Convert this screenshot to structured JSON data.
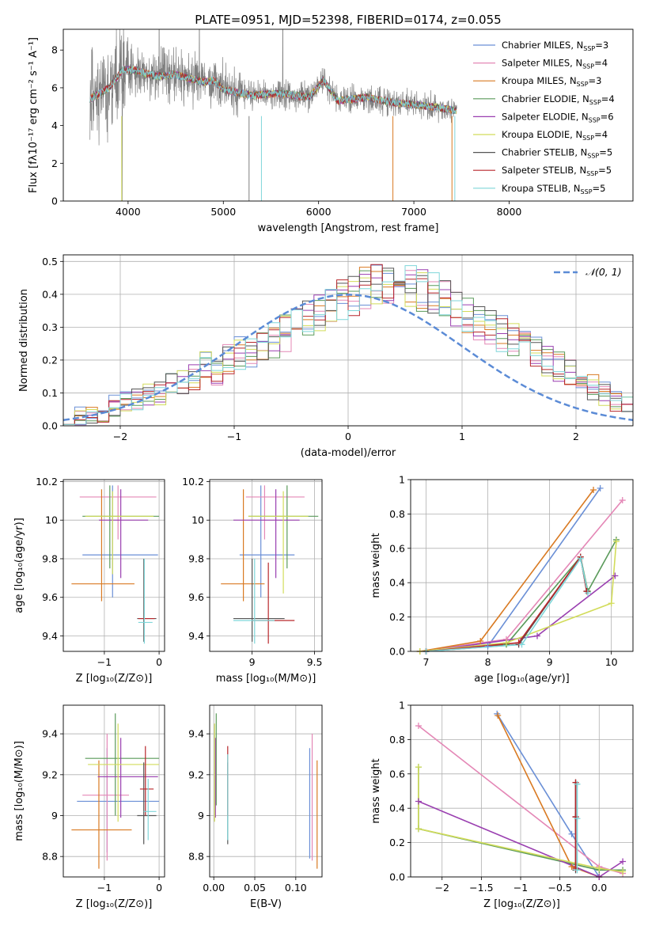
{
  "title": "PLATE=0951, MJD=52398, FIBERID=0174, z=0.055",
  "models": [
    {
      "name": "Chabrier MILES",
      "n": "3",
      "color": "#6a8fd6"
    },
    {
      "name": "Salpeter MILES",
      "n": "4",
      "color": "#e487b6"
    },
    {
      "name": "Kroupa MILES",
      "n": "3",
      "color": "#d97a22"
    },
    {
      "name": "Chabrier ELODIE",
      "n": "4",
      "color": "#5a9a5a"
    },
    {
      "name": "Salpeter ELODIE",
      "n": "6",
      "color": "#9a3fb0"
    },
    {
      "name": "Kroupa ELODIE",
      "n": "4",
      "color": "#d2dc5a"
    },
    {
      "name": "Chabrier STELIB",
      "n": "5",
      "color": "#555555"
    },
    {
      "name": "Salpeter STELIB",
      "n": "5",
      "color": "#b8272b"
    },
    {
      "name": "Kroupa STELIB",
      "n": "5",
      "color": "#7fd6d9"
    }
  ],
  "chart_data": [
    {
      "type": "line",
      "id": "spectrum",
      "xlabel": "wavelength [Angstrom, rest frame]",
      "ylabel": "Flux [fλ10⁻¹⁷ erg cm⁻² s⁻¹ A⁻¹]",
      "xlim": [
        3320,
        9300
      ],
      "ylim": [
        0,
        9.1
      ],
      "xticks": [
        4000,
        5000,
        6000,
        7000,
        8000
      ],
      "yticks": [
        0,
        2,
        4,
        6,
        8
      ],
      "data_range": [
        3600,
        7450
      ],
      "continuum": {
        "x": [
          3600,
          3700,
          3800,
          3950,
          4100,
          4300,
          4500,
          4800,
          4900,
          5000,
          5300,
          5600,
          5900,
          6050,
          6200,
          6500,
          6800,
          7000,
          7200,
          7440
        ],
        "y": [
          5.4,
          5.7,
          6.0,
          7.0,
          6.9,
          6.6,
          6.7,
          6.3,
          6.4,
          5.9,
          5.6,
          5.7,
          5.5,
          6.4,
          5.3,
          5.5,
          5.2,
          5.1,
          5.0,
          4.8
        ]
      },
      "legend": "upper right"
    },
    {
      "type": "line",
      "id": "residual_hist",
      "xlabel": "(data-model)/error",
      "ylabel": "Normed distribution",
      "xlim": [
        -2.5,
        2.5
      ],
      "ylim": [
        0,
        0.52
      ],
      "xticks": [
        -2,
        -1,
        0,
        1,
        2
      ],
      "yticks": [
        0.0,
        0.1,
        0.2,
        0.3,
        0.4,
        0.5
      ],
      "reference": {
        "name": "𝒩(0, 1)",
        "mean": 0,
        "sigma": 1
      },
      "bin_width": 0.1,
      "bin_start": -2.5,
      "hist": [
        0.03,
        0.03,
        0.035,
        0.04,
        0.06,
        0.08,
        0.08,
        0.09,
        0.1,
        0.12,
        0.14,
        0.15,
        0.18,
        0.17,
        0.2,
        0.22,
        0.23,
        0.24,
        0.26,
        0.28,
        0.3,
        0.32,
        0.34,
        0.36,
        0.38,
        0.4,
        0.42,
        0.43,
        0.44,
        0.43,
        0.42,
        0.41,
        0.4,
        0.38,
        0.36,
        0.34,
        0.32,
        0.3,
        0.28,
        0.26,
        0.24,
        0.22,
        0.2,
        0.18,
        0.16,
        0.13,
        0.12,
        0.1,
        0.08,
        0.06
      ]
    },
    {
      "type": "scatter",
      "id": "age_vs_Z",
      "xlabel": "Z [log₁₀(Z/Z⊙)]",
      "ylabel": "age  [log₁₀(age/yr)]",
      "xlim": [
        -1.75,
        0.1
      ],
      "ylim": [
        9.32,
        10.21
      ],
      "xticks": [
        -1,
        0
      ],
      "yticks": [
        9.4,
        9.6,
        9.8,
        10.0,
        10.2
      ],
      "points": [
        {
          "m": 0,
          "x": -0.85,
          "y": 9.82,
          "xe": [
            -1.4,
            -0.02
          ],
          "ye": [
            9.6,
            10.18
          ]
        },
        {
          "m": 1,
          "x": -0.75,
          "y": 10.12,
          "xe": [
            -1.45,
            -0.05
          ],
          "ye": [
            9.9,
            10.18
          ]
        },
        {
          "m": 2,
          "x": -1.05,
          "y": 9.67,
          "xe": [
            -1.6,
            -0.45
          ],
          "ye": [
            9.58,
            10.16
          ]
        },
        {
          "m": 3,
          "x": -0.9,
          "y": 10.02,
          "xe": [
            -1.4,
            0.0
          ],
          "ye": [
            9.75,
            10.18
          ]
        },
        {
          "m": 4,
          "x": -0.7,
          "y": 10.0,
          "xe": [
            -1.1,
            -0.2
          ],
          "ye": [
            9.7,
            10.16
          ]
        },
        {
          "m": 5,
          "x": -0.85,
          "y": 10.02,
          "xe": [
            -1.35,
            -0.1
          ],
          "ye": [
            9.72,
            10.15
          ]
        },
        {
          "m": 6,
          "x": -0.28,
          "y": 9.49,
          "xe": [
            -0.4,
            -0.05
          ],
          "ye": [
            9.37,
            9.8
          ]
        },
        {
          "m": 7,
          "x": -0.27,
          "y": 9.49,
          "xe": [
            -0.38,
            -0.08
          ],
          "ye": [
            9.38,
            9.78
          ]
        },
        {
          "m": 8,
          "x": -0.27,
          "y": 9.47,
          "xe": [
            -0.38,
            -0.12
          ],
          "ye": [
            9.36,
            9.8
          ]
        }
      ]
    },
    {
      "type": "scatter",
      "id": "age_vs_mass",
      "xlabel": "mass [log₁₀(M/M⊙)]",
      "ylabel": "",
      "xlim": [
        8.66,
        9.56
      ],
      "ylim": [
        9.32,
        10.21
      ],
      "xticks": [
        9.0,
        9.5
      ],
      "yticks": [
        9.4,
        9.6,
        9.8,
        10.0,
        10.2
      ],
      "points": [
        {
          "m": 0,
          "x": 9.07,
          "y": 9.82,
          "xe": [
            8.9,
            9.34
          ],
          "ye": [
            9.6,
            10.18
          ]
        },
        {
          "m": 1,
          "x": 9.1,
          "y": 10.12,
          "xe": [
            8.95,
            9.42
          ],
          "ye": [
            9.9,
            10.18
          ]
        },
        {
          "m": 2,
          "x": 8.93,
          "y": 9.67,
          "xe": [
            8.75,
            9.1
          ],
          "ye": [
            9.58,
            10.16
          ]
        },
        {
          "m": 3,
          "x": 9.28,
          "y": 10.02,
          "xe": [
            8.97,
            9.53
          ],
          "ye": [
            9.75,
            10.18
          ]
        },
        {
          "m": 4,
          "x": 9.19,
          "y": 10.0,
          "xe": [
            8.85,
            9.38
          ],
          "ye": [
            9.7,
            10.16
          ]
        },
        {
          "m": 5,
          "x": 9.25,
          "y": 10.02,
          "xe": [
            8.97,
            9.45
          ],
          "ye": [
            9.62,
            10.15
          ]
        },
        {
          "m": 6,
          "x": 9.0,
          "y": 9.49,
          "xe": [
            8.85,
            9.26
          ],
          "ye": [
            9.37,
            9.8
          ]
        },
        {
          "m": 7,
          "x": 9.13,
          "y": 9.48,
          "xe": [
            9.0,
            9.34
          ],
          "ye": [
            9.36,
            9.78
          ]
        },
        {
          "m": 8,
          "x": 9.02,
          "y": 9.48,
          "xe": [
            8.85,
            9.18
          ],
          "ye": [
            9.36,
            9.8
          ]
        }
      ]
    },
    {
      "type": "line",
      "id": "weight_vs_age",
      "xlabel": "age  [log₁₀(age/yr)]",
      "ylabel": "mass weight",
      "xlim": [
        6.75,
        10.35
      ],
      "ylim": [
        0,
        1.0
      ],
      "xticks": [
        7,
        8,
        9,
        10
      ],
      "yticks": [
        0.0,
        0.2,
        0.4,
        0.6,
        0.8,
        1.0
      ],
      "series": [
        {
          "m": 0,
          "x": [
            6.9,
            8.0,
            9.82
          ],
          "y": [
            0.0,
            0.03,
            0.95
          ]
        },
        {
          "m": 1,
          "x": [
            6.9,
            8.3,
            10.18
          ],
          "y": [
            0.0,
            0.07,
            0.88
          ]
        },
        {
          "m": 2,
          "x": [
            6.9,
            7.88,
            9.71
          ],
          "y": [
            0.0,
            0.06,
            0.94
          ]
        },
        {
          "m": 3,
          "x": [
            7.0,
            8.3,
            9.5,
            9.62,
            10.08
          ],
          "y": [
            0.0,
            0.04,
            0.55,
            0.35,
            0.65
          ]
        },
        {
          "m": 4,
          "x": [
            7.0,
            8.8,
            10.06
          ],
          "y": [
            0.0,
            0.09,
            0.44
          ]
        },
        {
          "m": 5,
          "x": [
            6.9,
            8.3,
            10.0,
            10.08
          ],
          "y": [
            0.0,
            0.05,
            0.28,
            0.64
          ]
        },
        {
          "m": 6,
          "x": [
            7.0,
            8.5,
            9.5,
            9.6
          ],
          "y": [
            0.0,
            0.04,
            0.55,
            0.35
          ]
        },
        {
          "m": 7,
          "x": [
            7.0,
            8.5,
            9.5,
            9.6
          ],
          "y": [
            0.0,
            0.05,
            0.55,
            0.35
          ]
        },
        {
          "m": 8,
          "x": [
            7.0,
            8.55,
            9.5,
            9.62
          ],
          "y": [
            0.0,
            0.04,
            0.54,
            0.34
          ]
        }
      ]
    },
    {
      "type": "scatter",
      "id": "mass_vs_Z",
      "xlabel": "Z [log₁₀(Z/Z⊙)]",
      "ylabel": "mass [log₁₀(M/M⊙)]",
      "xlim": [
        -1.75,
        0.1
      ],
      "ylim": [
        8.7,
        9.54
      ],
      "xticks": [
        -1,
        0
      ],
      "yticks": [
        8.8,
        9.0,
        9.2,
        9.4
      ],
      "points": [
        {
          "m": 0,
          "x": -0.95,
          "y": 9.07,
          "xe": [
            -1.5,
            0.0
          ],
          "ye": [
            8.82,
            9.33
          ]
        },
        {
          "m": 1,
          "x": -0.95,
          "y": 9.1,
          "xe": [
            -1.4,
            -0.55
          ],
          "ye": [
            8.78,
            9.4
          ]
        },
        {
          "m": 2,
          "x": -1.1,
          "y": 8.93,
          "xe": [
            -1.6,
            -0.5
          ],
          "ye": [
            8.74,
            9.27
          ]
        },
        {
          "m": 3,
          "x": -0.8,
          "y": 9.28,
          "xe": [
            -1.35,
            0.0
          ],
          "ye": [
            9.0,
            9.5
          ]
        },
        {
          "m": 4,
          "x": -0.7,
          "y": 9.19,
          "xe": [
            -1.12,
            -0.02
          ],
          "ye": [
            8.99,
            9.38
          ]
        },
        {
          "m": 5,
          "x": -0.75,
          "y": 9.25,
          "xe": [
            -1.3,
            0.0
          ],
          "ye": [
            8.97,
            9.45
          ]
        },
        {
          "m": 6,
          "x": -0.28,
          "y": 9.0,
          "xe": [
            -0.4,
            -0.05
          ],
          "ye": [
            8.86,
            9.26
          ]
        },
        {
          "m": 7,
          "x": -0.25,
          "y": 9.13,
          "xe": [
            -0.35,
            -0.1
          ],
          "ye": [
            9.0,
            9.34
          ]
        },
        {
          "m": 8,
          "x": -0.2,
          "y": 9.02,
          "xe": [
            -0.28,
            -0.05
          ],
          "ye": [
            8.88,
            9.18
          ]
        }
      ]
    },
    {
      "type": "scatter",
      "id": "mass_vs_ebv",
      "xlabel": "E(B-V)",
      "ylabel": "",
      "xlim": [
        -0.005,
        0.132
      ],
      "ylim": [
        8.7,
        9.54
      ],
      "xticks": [
        0.0,
        0.05,
        0.1
      ],
      "yticks": [
        8.8,
        9.0,
        9.2,
        9.4
      ],
      "points": [
        {
          "m": 0,
          "x": 0.117,
          "ye": [
            8.79,
            9.33
          ]
        },
        {
          "m": 1,
          "x": 0.12,
          "ye": [
            8.78,
            9.4
          ]
        },
        {
          "m": 2,
          "x": 0.126,
          "ye": [
            8.74,
            9.27
          ]
        },
        {
          "m": 3,
          "x": 0.003,
          "ye": [
            9.05,
            9.5
          ]
        },
        {
          "m": 4,
          "x": 0.002,
          "ye": [
            8.99,
            9.38
          ]
        },
        {
          "m": 5,
          "x": 0.001,
          "ye": [
            8.97,
            9.45
          ]
        },
        {
          "m": 6,
          "x": 0.017,
          "ye": [
            8.86,
            9.26
          ]
        },
        {
          "m": 7,
          "x": 0.017,
          "ye": [
            9.0,
            9.34
          ]
        },
        {
          "m": 8,
          "x": 0.017,
          "ye": [
            8.88,
            9.3
          ]
        }
      ]
    },
    {
      "type": "line",
      "id": "weight_vs_Z",
      "xlabel": "Z [log₁₀(Z/Z⊙)]",
      "ylabel": "mass weight",
      "xlim": [
        -2.4,
        0.43
      ],
      "ylim": [
        0,
        1.0
      ],
      "xticks": [
        -2.0,
        -1.5,
        -1.0,
        -0.5,
        0.0
      ],
      "yticks": [
        0.0,
        0.2,
        0.4,
        0.6,
        0.8,
        1.0
      ],
      "series": [
        {
          "m": 0,
          "x": [
            -1.3,
            -0.35,
            0.0
          ],
          "y": [
            0.95,
            0.25,
            0.0
          ]
        },
        {
          "m": 1,
          "x": [
            -2.3,
            0.0,
            0.3
          ],
          "y": [
            0.88,
            0.06,
            0.02
          ]
        },
        {
          "m": 2,
          "x": [
            -1.29,
            -0.35,
            0.0
          ],
          "y": [
            0.94,
            0.06,
            0.0
          ]
        },
        {
          "m": 3,
          "x": [
            -2.3,
            -2.3,
            0.0,
            0.3
          ],
          "y": [
            0.64,
            0.28,
            0.04,
            0.04
          ]
        },
        {
          "m": 4,
          "x": [
            -2.3,
            0.0,
            0.3
          ],
          "y": [
            0.44,
            0.0,
            0.09
          ]
        },
        {
          "m": 5,
          "x": [
            -2.3,
            -2.3,
            0.0,
            0.3
          ],
          "y": [
            0.64,
            0.28,
            0.05,
            0.03
          ]
        },
        {
          "m": 6,
          "x": [
            -0.3,
            -0.3,
            -0.3
          ],
          "y": [
            0.55,
            0.35,
            0.04
          ]
        },
        {
          "m": 7,
          "x": [
            -0.3,
            -0.3,
            -0.3
          ],
          "y": [
            0.55,
            0.35,
            0.05
          ]
        },
        {
          "m": 8,
          "x": [
            -0.28,
            -0.28,
            -0.28
          ],
          "y": [
            0.54,
            0.34,
            0.04
          ]
        }
      ]
    }
  ]
}
